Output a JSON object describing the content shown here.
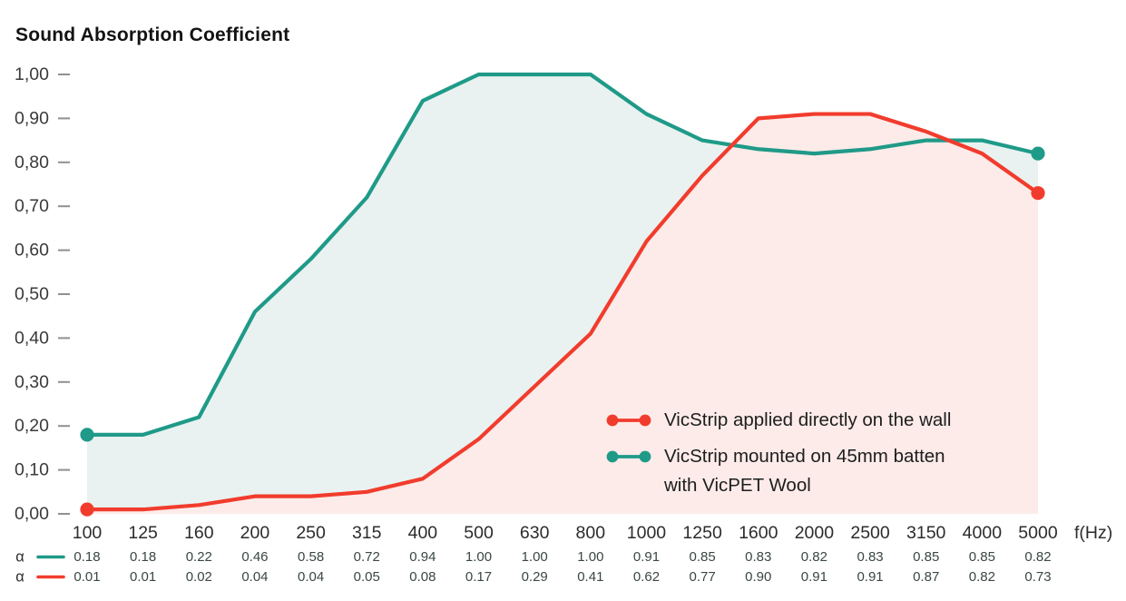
{
  "title": "Sound Absorption Coefficient",
  "colors": {
    "red_line": "#f13c2d",
    "teal_line": "#1f9a88",
    "red_fill": "#fcebe9",
    "teal_fill": "#e9f2f0",
    "axis_text": "#2c2c2c",
    "ytick_text": "#3a3a3a",
    "tick_dash": "#909090",
    "table_value_text": "#3a4743",
    "legend_text": "#1d1d1d",
    "title_text": "#131313"
  },
  "chart_data": {
    "type": "line",
    "title": "Sound Absorption Coefficient",
    "xlabel": "f(Hz)",
    "ylabel": "Sound Absorption Coefficient",
    "categories": [
      100,
      125,
      160,
      200,
      250,
      315,
      400,
      500,
      630,
      800,
      1000,
      1250,
      1600,
      2000,
      2500,
      3150,
      4000,
      5000
    ],
    "ylim": [
      0,
      1
    ],
    "y_tick_step": 0.1,
    "y_tick_decimal_separator": ",",
    "grid": false,
    "area_fill": true,
    "end_point_markers": true,
    "legend_position": "inside-bottom-right",
    "series": [
      {
        "name": "VicStrip applied directly on the wall",
        "legend_lines": [
          "VicStrip applied directly on the wall"
        ],
        "color_key": "red_line",
        "fill_key": "red_fill",
        "values": [
          0.01,
          0.01,
          0.02,
          0.04,
          0.04,
          0.05,
          0.08,
          0.17,
          0.29,
          0.41,
          0.62,
          0.77,
          0.9,
          0.91,
          0.91,
          0.87,
          0.82,
          0.73
        ]
      },
      {
        "name": "VicStrip mounted on 45mm batten with VicPET Wool",
        "legend_lines": [
          "VicStrip mounted on 45mm batten",
          "with VicPET Wool"
        ],
        "color_key": "teal_line",
        "fill_key": "teal_fill",
        "values": [
          0.18,
          0.18,
          0.22,
          0.46,
          0.58,
          0.72,
          0.94,
          1.0,
          1.0,
          1.0,
          0.91,
          0.85,
          0.83,
          0.82,
          0.83,
          0.85,
          0.85,
          0.82
        ]
      }
    ],
    "table": {
      "alpha_symbol": "α",
      "row_series_order": [
        1,
        0
      ],
      "value_decimals": 2
    }
  }
}
